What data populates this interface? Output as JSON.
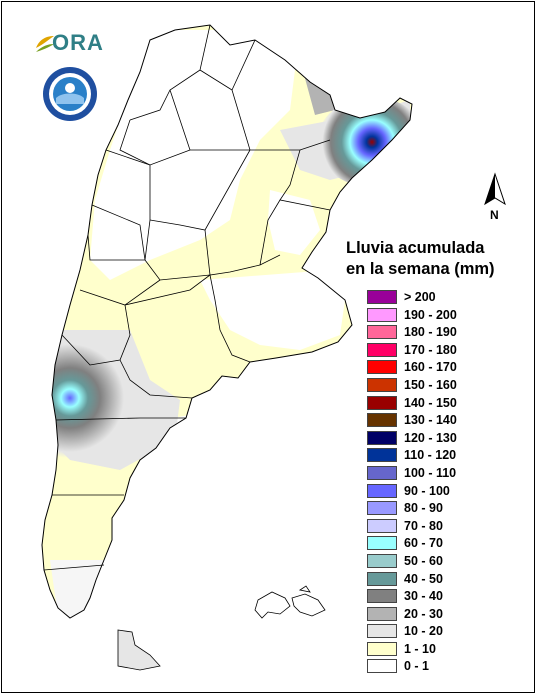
{
  "title": {
    "line1": "Lluvia acumulada",
    "line2": "en la semana (mm)"
  },
  "logo": {
    "text": "ORA"
  },
  "north": {
    "label": "N"
  },
  "legend": [
    {
      "label": "> 200",
      "color": "#990099"
    },
    {
      "label": "190 - 200",
      "color": "#ff99ff"
    },
    {
      "label": "180 - 190",
      "color": "#ff6699"
    },
    {
      "label": "170 - 180",
      "color": "#ff0066"
    },
    {
      "label": "160 - 170",
      "color": "#ff0000"
    },
    {
      "label": "150 - 160",
      "color": "#cc3300"
    },
    {
      "label": "140 - 150",
      "color": "#990000"
    },
    {
      "label": "130 - 140",
      "color": "#663300"
    },
    {
      "label": "120 - 130",
      "color": "#000066"
    },
    {
      "label": "110 - 120",
      "color": "#003399"
    },
    {
      "label": "100 - 110",
      "color": "#6666cc"
    },
    {
      "label": "90 - 100",
      "color": "#6666ff"
    },
    {
      "label": "80 - 90",
      "color": "#9999ff"
    },
    {
      "label": "70 - 80",
      "color": "#ccccff"
    },
    {
      "label": "60 - 70",
      "color": "#99ffff"
    },
    {
      "label": "50 - 60",
      "color": "#99cccc"
    },
    {
      "label": "40 - 50",
      "color": "#669999"
    },
    {
      "label": "30 - 40",
      "color": "#808080"
    },
    {
      "label": "20 - 30",
      "color": "#b3b3b3"
    },
    {
      "label": "10 - 20",
      "color": "#e6e6e6"
    },
    {
      "label": "1 - 10",
      "color": "#ffffcc"
    },
    {
      "label": "0 - 1",
      "color": "#ffffff"
    }
  ]
}
